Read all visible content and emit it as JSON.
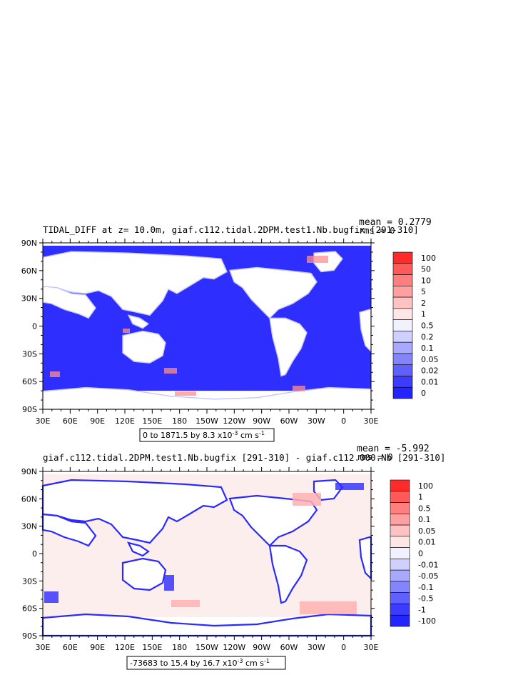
{
  "panels": [
    {
      "title": "TIDAL_DIFF at z=   10.0m, giaf.c112.tidal.2DPM.test1.Nb.bugfix  [291-310]",
      "mean": "mean = 0.2779",
      "rms": "rms = 0",
      "range_note": "0 to 1871.5 by 8.3 x10",
      "range_exp": "-3",
      "range_units": " cm s",
      "range_units_exp": "-1",
      "lat_labels": [
        "90N",
        "60N",
        "30N",
        "0",
        "30S",
        "60S",
        "90S"
      ],
      "lon_labels": [
        "30E",
        "60E",
        "90E",
        "120E",
        "150E",
        "180",
        "150W",
        "120W",
        "90W",
        "60W",
        "30W",
        "0",
        "30E"
      ],
      "colorbar": {
        "labels": [
          "100",
          "50",
          "10",
          "5",
          "2",
          "1",
          "0.5",
          "0.2",
          "0.1",
          "0.05",
          "0.02",
          "0.01",
          "0"
        ],
        "colors": [
          "#ff2a2a",
          "#ff5a5a",
          "#ff7f7f",
          "#ffa0a0",
          "#ffc2c2",
          "#ffe6e6",
          "#f2f2ff",
          "#d0d0ff",
          "#a8a8ff",
          "#8484ff",
          "#6060ff",
          "#3c3cff",
          "#2424ff"
        ]
      },
      "ocean_color": "#2e2eff"
    },
    {
      "title": "giaf.c112.tidal.2DPM.test1.Nb.bugfix  [291-310]  -  giaf.c112.000.Nb  [291-310]",
      "mean": "mean = -5.992",
      "rms": "rms = 0",
      "range_note": "-73683 to 15.4 by 16.7 x10",
      "range_exp": "-3",
      "range_units": " cm s",
      "range_units_exp": "-1",
      "lat_labels": [
        "90N",
        "60N",
        "30N",
        "0",
        "30S",
        "60S",
        "90S"
      ],
      "lon_labels": [
        "30E",
        "60E",
        "90E",
        "120E",
        "150E",
        "180",
        "150W",
        "120W",
        "90W",
        "60W",
        "30W",
        "0",
        "30E"
      ],
      "colorbar": {
        "labels": [
          "100",
          "1",
          "0.5",
          "0.1",
          "0.05",
          "0.01",
          "0",
          "-0.01",
          "-0.05",
          "-0.1",
          "-0.5",
          "-1",
          "-100"
        ],
        "colors": [
          "#ff2a2a",
          "#ff5a5a",
          "#ff7f7f",
          "#ffa0a0",
          "#ffc2c2",
          "#ffe6e6",
          "#f2f2ff",
          "#d0d0ff",
          "#a8a8ff",
          "#8484ff",
          "#6060ff",
          "#3c3cff",
          "#2424ff"
        ]
      },
      "ocean_color": "#fdeeee"
    }
  ]
}
